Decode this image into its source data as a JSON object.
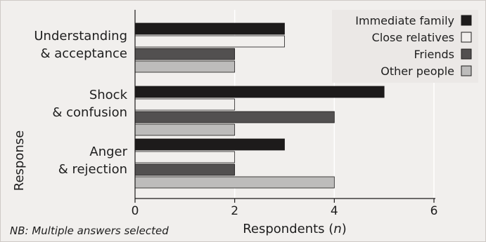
{
  "chart_data": {
    "type": "bar",
    "orientation": "horizontal",
    "categories": [
      [
        "Understanding",
        "& acceptance"
      ],
      [
        "Shock",
        "& confusion"
      ],
      [
        "Anger",
        "& rejection"
      ]
    ],
    "series": [
      {
        "name": "Immediate family",
        "color": "#1d1b1b",
        "values": [
          3,
          5,
          3
        ]
      },
      {
        "name": "Close relatives",
        "color": "#f1efed",
        "values": [
          3,
          2,
          2
        ]
      },
      {
        "name": "Friends",
        "color": "#525050",
        "values": [
          2,
          4,
          2
        ]
      },
      {
        "name": "Other people",
        "color": "#bdbcbb",
        "values": [
          2,
          2,
          4
        ]
      }
    ],
    "xlim": [
      0,
      6
    ],
    "xticks": [
      0,
      2,
      4,
      6
    ],
    "xlabel": "Respondents (",
    "xlabel_italic": "n",
    "xlabel_close": ")",
    "ylabel": "Response",
    "note": "NB: Multiple answers selected",
    "legend_position": "top-right",
    "grid": true
  }
}
